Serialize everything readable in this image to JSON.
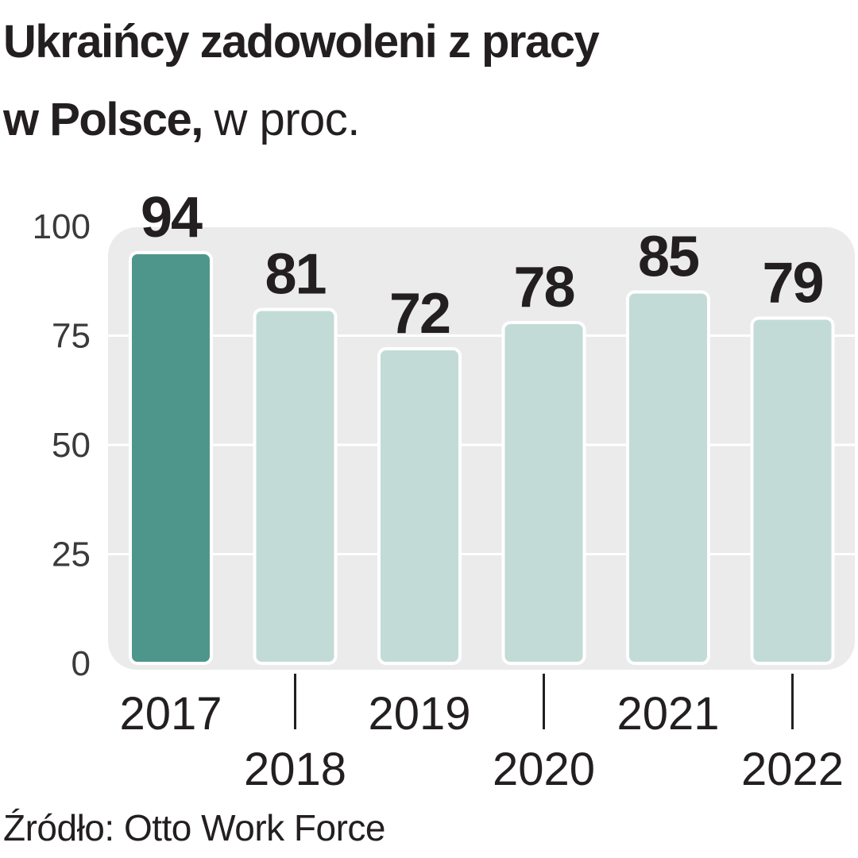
{
  "title": {
    "line1": "Ukraińcy zadowoleni z pracy",
    "line2_bold": "w Polsce,",
    "line2_unit": "w proc."
  },
  "chart_data": {
    "type": "bar",
    "title": "Ukraińcy zadowoleni z pracy w Polsce, w proc.",
    "categories": [
      "2017",
      "2018",
      "2019",
      "2020",
      "2021",
      "2022"
    ],
    "values": [
      94,
      81,
      72,
      78,
      85,
      79
    ],
    "value_labels": [
      "94",
      "81",
      "72",
      "78",
      "85",
      "79"
    ],
    "highlight_index": 0,
    "ylim": [
      0,
      100
    ],
    "yticks": [
      0,
      25,
      50,
      75,
      100
    ],
    "ytick_labels": [
      "0",
      "25",
      "50",
      "75",
      "100"
    ],
    "xlabel": "",
    "ylabel": "",
    "grid": true,
    "colors": {
      "highlight": "#4e968b",
      "bar": "#c2dbd6",
      "panel": "#ebebeb",
      "gridline": "#ffffff",
      "text": "#231f20"
    }
  },
  "source": "Źródło: Otto Work Force"
}
